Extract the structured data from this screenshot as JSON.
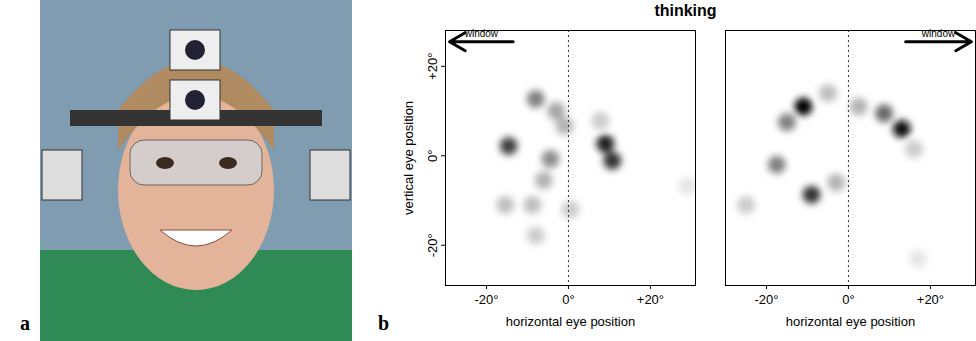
{
  "panel_labels": [
    "a",
    "b"
  ],
  "title": "thinking",
  "chart_data": [
    {
      "type": "heatmap",
      "xlabel": "horizontal eye position",
      "ylabel": "vertical eye position",
      "xlim": [
        -30,
        31
      ],
      "ylim": [
        -29,
        28
      ],
      "xticks": [
        {
          "value": -20,
          "label": "-20°"
        },
        {
          "value": 0,
          "label": "0°"
        },
        {
          "value": 20,
          "label": "+20°"
        }
      ],
      "yticks": [
        {
          "value": -20,
          "label": "-20°"
        },
        {
          "value": 0,
          "label": "0°"
        },
        {
          "value": 20,
          "label": "+20°"
        }
      ],
      "reference_x": 0,
      "annotations": [
        {
          "text": "window",
          "direction": "left"
        }
      ],
      "value_range": [
        0,
        1
      ],
      "points": [
        {
          "x": -8,
          "y": 12.7,
          "value": 0.5
        },
        {
          "x": -3,
          "y": 10,
          "value": 0.35
        },
        {
          "x": -1,
          "y": 6.7,
          "value": 0.3
        },
        {
          "x": -14.6,
          "y": 2.2,
          "value": 0.75
        },
        {
          "x": 9,
          "y": 2.7,
          "value": 0.9
        },
        {
          "x": 10.7,
          "y": -1.1,
          "value": 0.8
        },
        {
          "x": -4.4,
          "y": -0.7,
          "value": 0.45
        },
        {
          "x": -6,
          "y": -5.5,
          "value": 0.3
        },
        {
          "x": -15.4,
          "y": -11,
          "value": 0.25
        },
        {
          "x": -8.8,
          "y": -11,
          "value": 0.25
        },
        {
          "x": -8,
          "y": -17.8,
          "value": 0.2
        },
        {
          "x": 0.5,
          "y": -12,
          "value": 0.2
        },
        {
          "x": 7.8,
          "y": 7.8,
          "value": 0.2
        },
        {
          "x": 29,
          "y": -6.7,
          "value": 0.1
        }
      ]
    },
    {
      "type": "heatmap",
      "xlabel": "horizontal eye position",
      "xlim": [
        -30,
        31
      ],
      "ylim": [
        -29,
        28
      ],
      "xticks": [
        {
          "value": -20,
          "label": "-20°"
        },
        {
          "value": 0,
          "label": "0°"
        },
        {
          "value": 20,
          "label": "+20°"
        }
      ],
      "tick_labels": "x",
      "reference_x": 0,
      "annotations": [
        {
          "text": "window",
          "direction": "right"
        }
      ],
      "value_range": [
        0,
        1
      ],
      "points": [
        {
          "x": -11,
          "y": 11,
          "value": 1.0
        },
        {
          "x": -15,
          "y": 7.5,
          "value": 0.5
        },
        {
          "x": -17.5,
          "y": -2,
          "value": 0.5
        },
        {
          "x": -9,
          "y": -8.7,
          "value": 0.8
        },
        {
          "x": -3,
          "y": -6,
          "value": 0.3
        },
        {
          "x": 8.7,
          "y": 9.5,
          "value": 0.6
        },
        {
          "x": 13,
          "y": 6,
          "value": 0.95
        },
        {
          "x": 16,
          "y": 1.5,
          "value": 0.2
        },
        {
          "x": -25,
          "y": -11,
          "value": 0.2
        },
        {
          "x": -5,
          "y": 14,
          "value": 0.25
        },
        {
          "x": 2.5,
          "y": 11,
          "value": 0.3
        },
        {
          "x": 17,
          "y": -23,
          "value": 0.1
        }
      ]
    }
  ]
}
